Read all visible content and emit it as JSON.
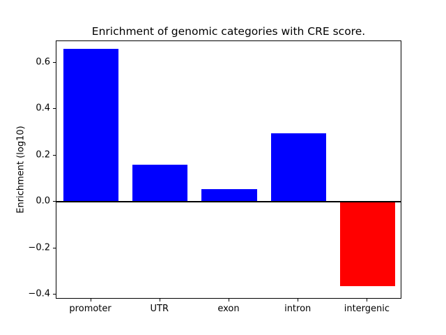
{
  "chart_data": {
    "type": "bar",
    "title": "Enrichment of genomic categories with CRE score.",
    "ylabel": "Enrichment (log10)",
    "xlabel": "",
    "categories": [
      "promoter",
      "UTR",
      "exon",
      "intron",
      "intergenic"
    ],
    "values": [
      0.66,
      0.16,
      0.055,
      0.295,
      -0.365
    ],
    "bar_colors": [
      "#0000ff",
      "#0000ff",
      "#0000ff",
      "#0000ff",
      "#ff0000"
    ],
    "positive_color": "#0000ff",
    "negative_color": "#ff0000",
    "yticks": [
      -0.4,
      -0.2,
      0.0,
      0.2,
      0.4,
      0.6
    ],
    "ylim": [
      -0.421,
      0.693
    ],
    "grid": false,
    "zero_line": true,
    "legend_position": "none",
    "background_color": "#ffffff",
    "axis_color": "#000000"
  }
}
